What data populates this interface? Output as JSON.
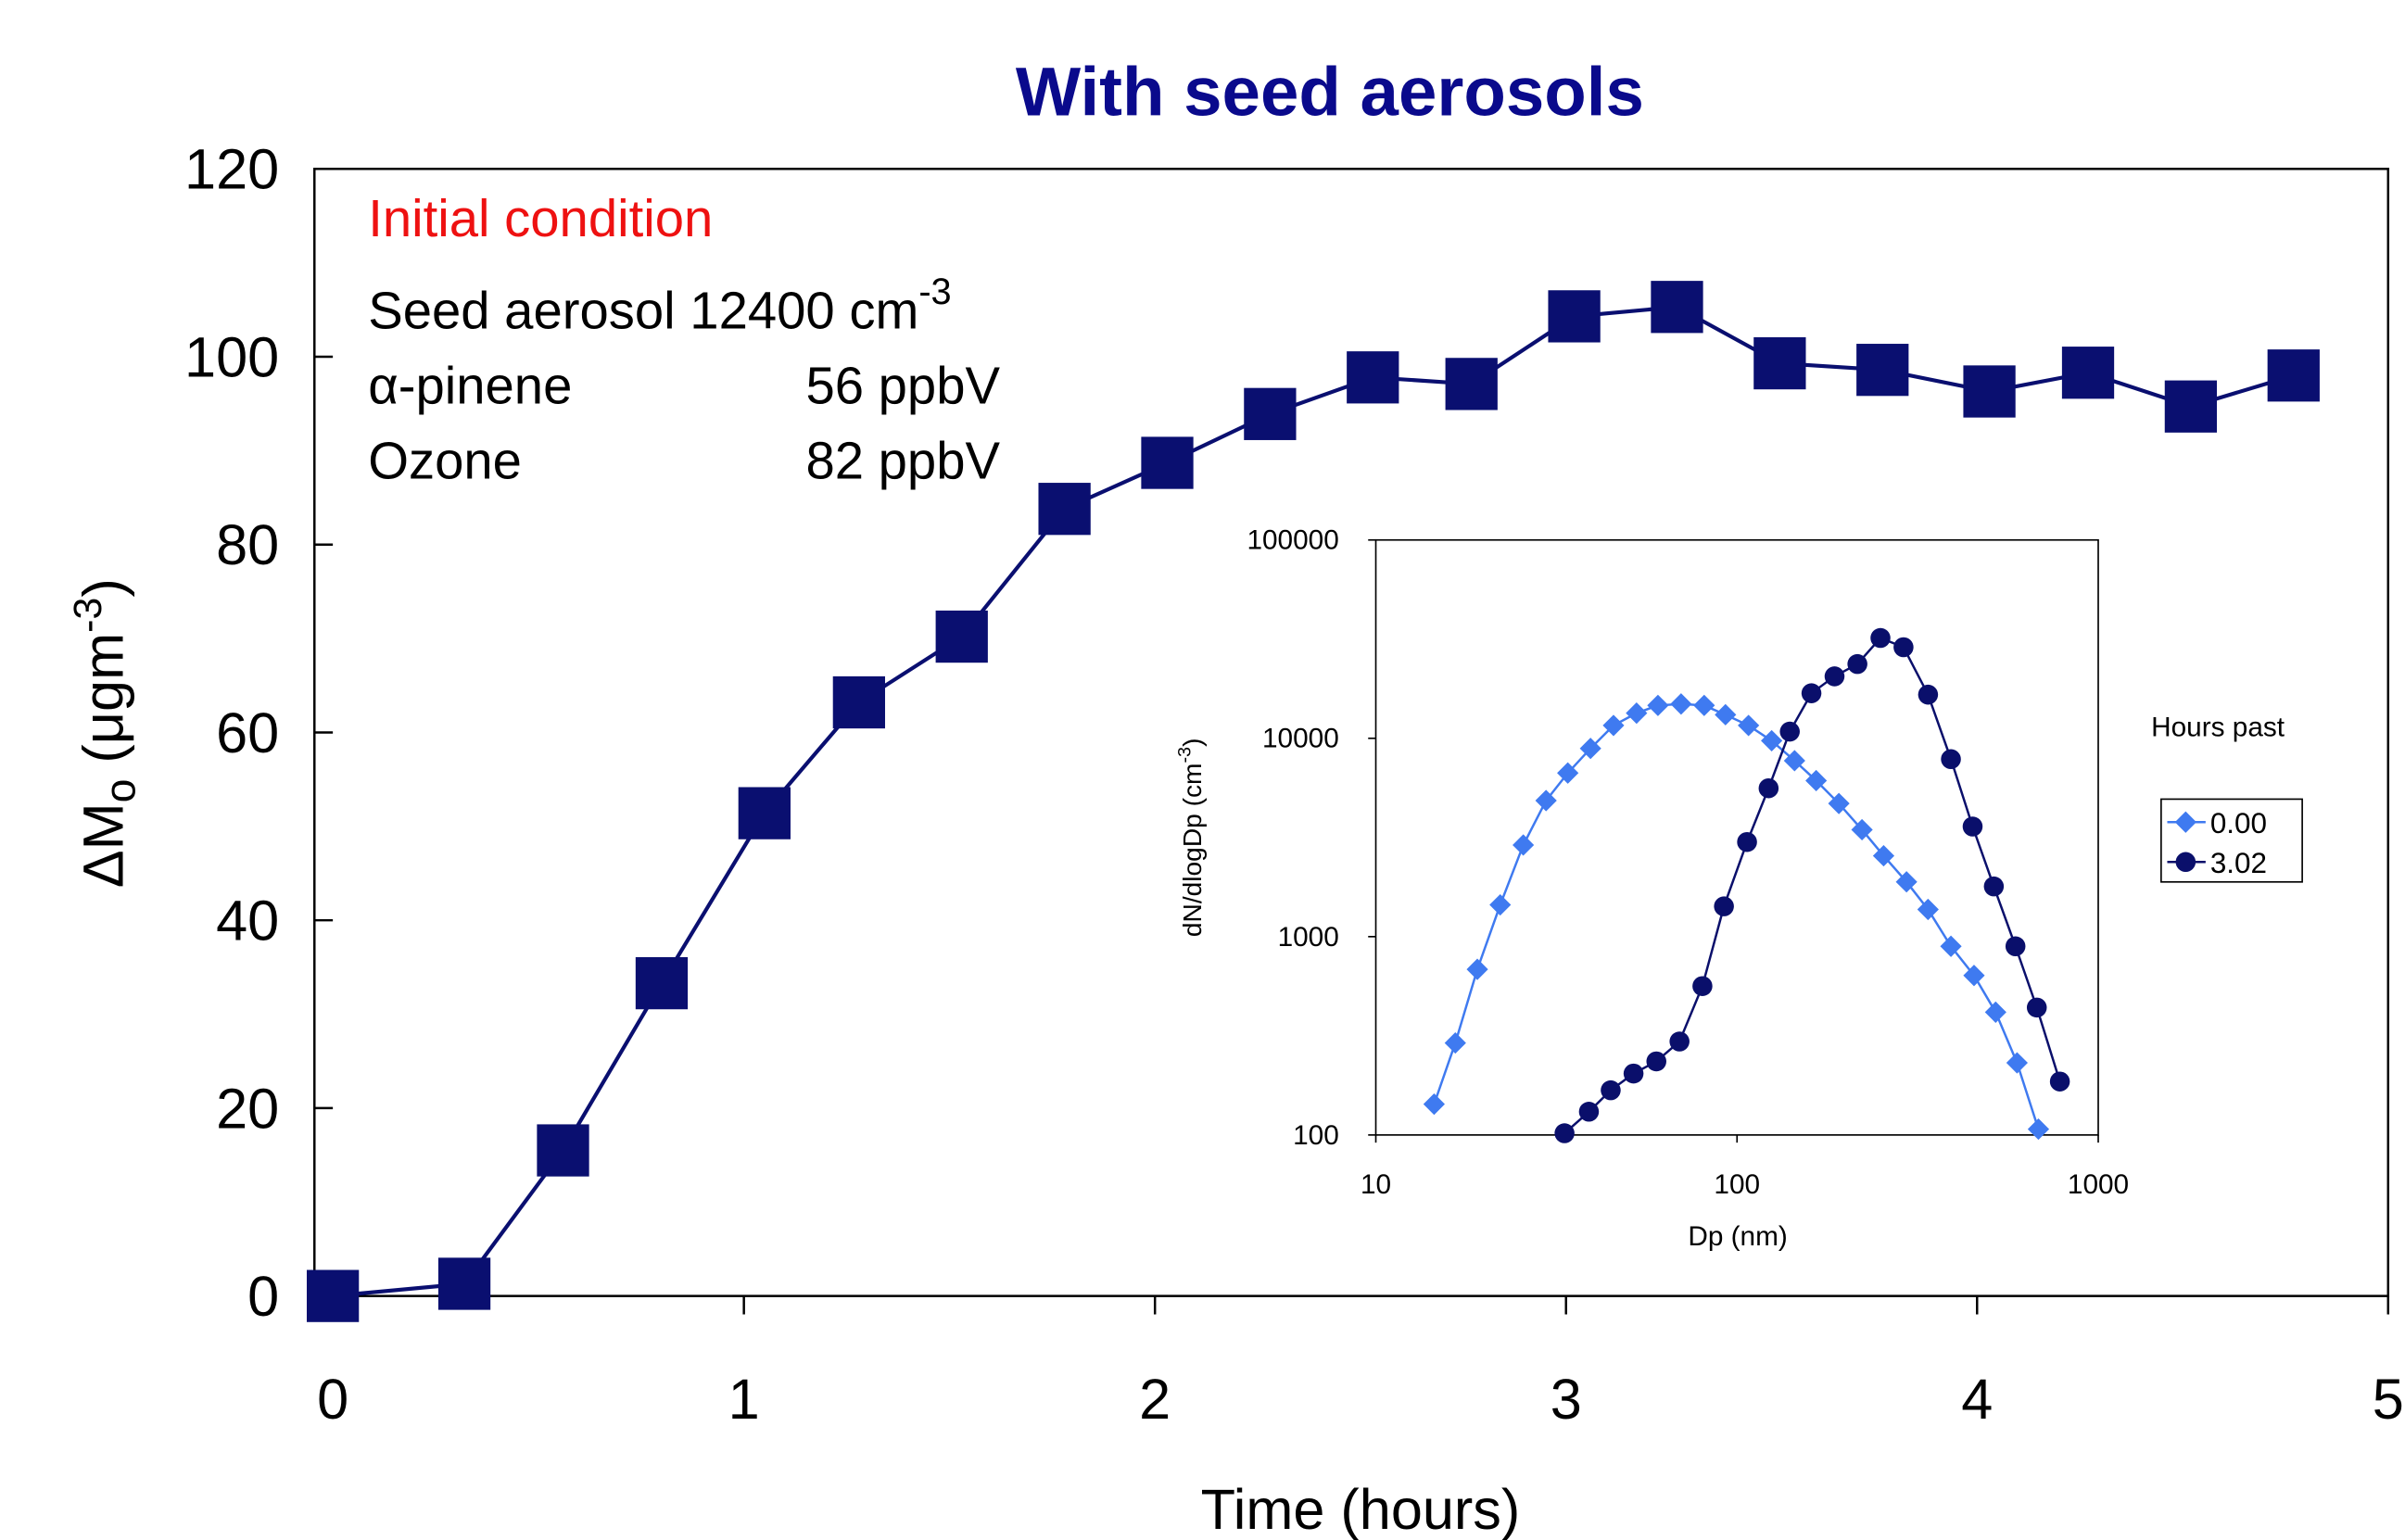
{
  "chart_data": [
    {
      "type": "line",
      "title": "With seed aerosols",
      "x_label": "Time (hours)",
      "y_label_parts": [
        "ΔM",
        "o",
        " (μgm",
        "-3",
        ")"
      ],
      "annotations": {
        "heading": "Initial condition",
        "seed": [
          "Seed aerosol 12400 cm",
          "-3"
        ],
        "lines": [
          [
            "α-pinene",
            "56 ppbV"
          ],
          [
            "Ozone",
            "82 ppbV"
          ]
        ]
      },
      "xlim": [
        0,
        5
      ],
      "xticks": [
        0,
        1,
        2,
        3,
        4,
        5
      ],
      "ylim": [
        0,
        120
      ],
      "yticks": [
        0,
        20,
        40,
        60,
        80,
        100,
        120
      ],
      "series": [
        {
          "color": "#0a0f70",
          "x": [
            0,
            0.32,
            0.56,
            0.8,
            1.05,
            1.28,
            1.53,
            1.78,
            2.03,
            2.28,
            2.53,
            2.77,
            3.02,
            3.27,
            3.52,
            3.77,
            4.03,
            4.27,
            4.52,
            4.77
          ],
          "values": [
            0,
            1.3,
            15.5,
            33.3,
            51.4,
            63.2,
            70.2,
            83.8,
            88.7,
            93.9,
            97.8,
            97.1,
            104.3,
            105.3,
            99.3,
            98.6,
            96.3,
            98.3,
            94.7,
            98
          ]
        }
      ]
    },
    {
      "type": "scatter",
      "x_label": "Dp (nm)",
      "y_label_parts": [
        "dN/dlogDp (cm",
        "-3",
        ")"
      ],
      "legend_title": "Hours past",
      "log_x": true,
      "log_y": true,
      "xlim": [
        10,
        1000
      ],
      "xticks": [
        10,
        100,
        1000
      ],
      "ylim": [
        100,
        100000
      ],
      "yticks": [
        100,
        1000,
        10000,
        100000
      ],
      "series": [
        {
          "name": "0.00",
          "color": "#3f7af0",
          "marker": "diamond",
          "x": [
            14.5,
            16.6,
            19.1,
            22.1,
            25.6,
            29.6,
            34,
            39.3,
            45.5,
            52.7,
            60.4,
            70,
            81.1,
            92.9,
            107.6,
            124.7,
            144.3,
            165.6,
            191.4,
            221.8,
            254.6,
            294.6,
            337.9,
            391,
            453,
            520,
            596,
            683
          ],
          "values": [
            143,
            291,
            684,
            1446,
            2897,
            4853,
            6683,
            8892,
            11610,
            13395,
            14650,
            14900,
            14650,
            13150,
            11610,
            9720,
            7710,
            6120,
            4690,
            3460,
            2557,
            1889,
            1371,
            894,
            637,
            416,
            231,
            107
          ]
        },
        {
          "name": "3.02",
          "color": "#0a0f6b",
          "marker": "circle",
          "x": [
            33.3,
            38.9,
            44.7,
            51.7,
            59.8,
            69.3,
            80.2,
            92,
            106.6,
            122.3,
            140,
            160.7,
            186.2,
            215.4,
            249.5,
            289,
            338,
            391,
            449,
            514,
            590,
            676,
            783
          ],
          "values": [
            102,
            131,
            168,
            204,
            235,
            296,
            563,
            1421,
            3000,
            5600,
            10810,
            16870,
            20530,
            23680,
            32050,
            28790,
            16600,
            7850,
            3590,
            1791,
            894,
            439,
            186
          ]
        }
      ]
    }
  ]
}
